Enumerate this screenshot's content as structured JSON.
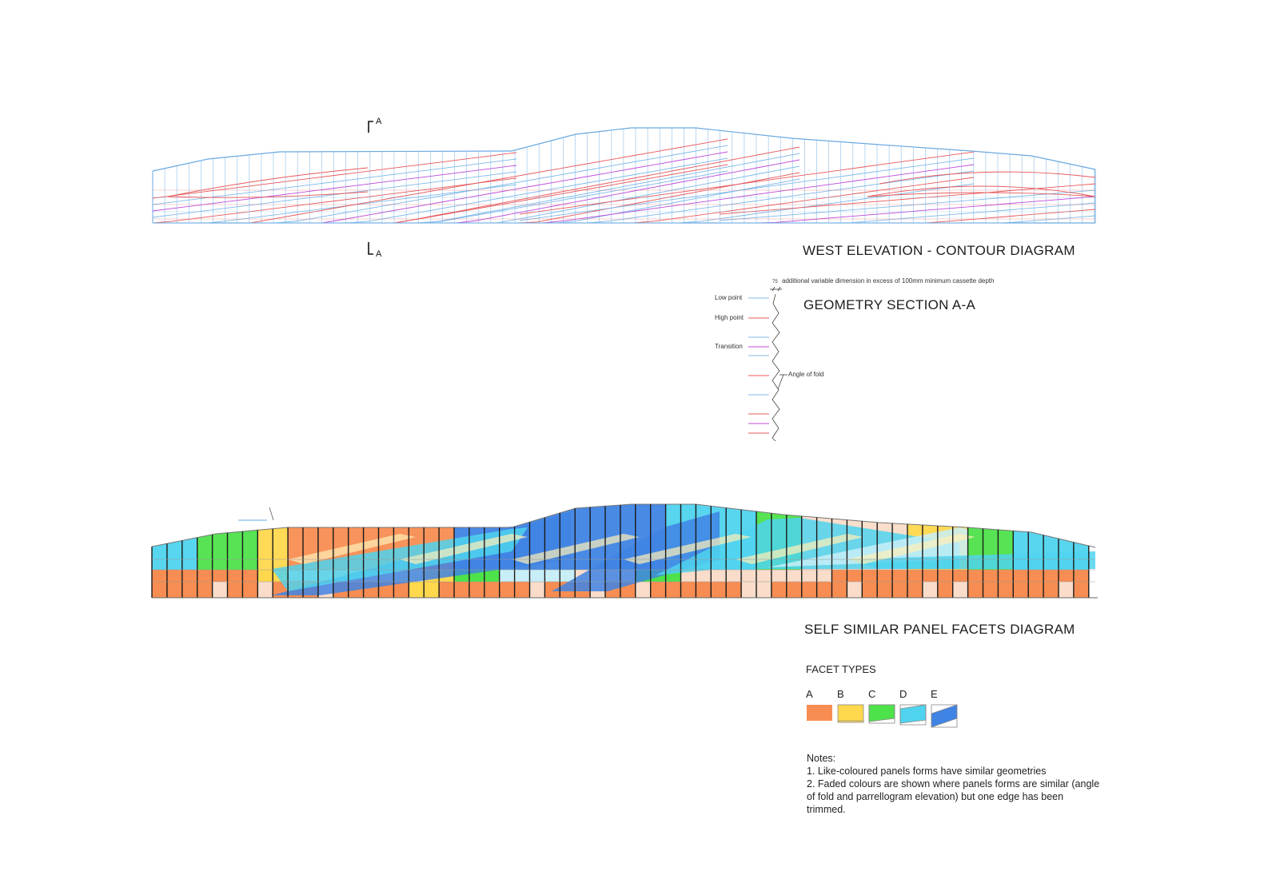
{
  "titles": {
    "west_elevation": "WEST ELEVATION - CONTOUR DIAGRAM",
    "geometry_section": "GEOMETRY SECTION A-A",
    "panel_facets": "SELF SIMILAR PANEL FACETS DIAGRAM"
  },
  "section_marker": {
    "label_top": "A",
    "label_bottom": "A"
  },
  "geometry_legend": {
    "dimension_value": "75",
    "dimension_note": "additional variable dimension in excess of 100mm minimum cassette depth",
    "low_point": "Low point",
    "high_point": "High point",
    "transition": "Transition",
    "angle_of_fold": "Angle of fold"
  },
  "facet_types": {
    "heading": "FACET TYPES",
    "items": [
      {
        "letter": "A",
        "color": "#f78d52"
      },
      {
        "letter": "B",
        "color": "#ffd84d"
      },
      {
        "letter": "C",
        "color": "#4ee24a"
      },
      {
        "letter": "D",
        "color": "#4fd3ee"
      },
      {
        "letter": "E",
        "color": "#3f84e4"
      }
    ]
  },
  "notes": {
    "heading": "Notes:",
    "lines": [
      "1. Like-coloured panels forms have similar geometries",
      "2. Faded colours are shown where panels forms are similar (angle of fold and parrellogram elevation) but one edge has been trimmed."
    ]
  },
  "colors": {
    "low": "#7fb8e8",
    "high": "#e8585a",
    "transition": "#c04ad8",
    "outline": "#6aa9e0",
    "A": "#f78d52",
    "A_faded": "#f9dcc9",
    "B": "#ffd84d",
    "B_faded": "#fff0b8",
    "C": "#4ee24a",
    "C_faded": "#c9f2c4",
    "D": "#4fd3ee",
    "D_faded": "#c8eef8",
    "E": "#3f84e4",
    "E_faded": "#bcd5f4"
  }
}
